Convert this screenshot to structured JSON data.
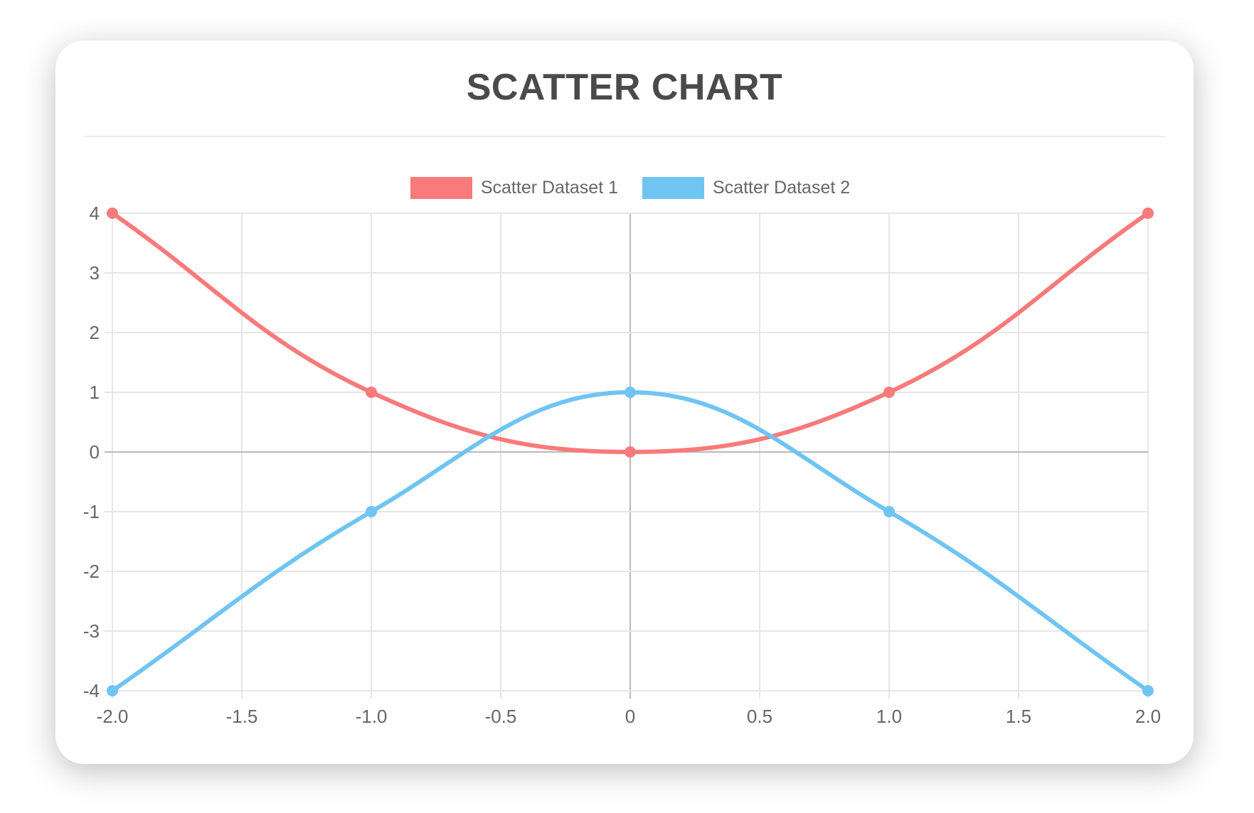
{
  "page": {
    "title": "SCATTER CHART"
  },
  "legend": {
    "items": [
      {
        "label": "Scatter Dataset 1",
        "color": "#f87a7a"
      },
      {
        "label": "Scatter Dataset 2",
        "color": "#70c4f2"
      }
    ]
  },
  "chart_data": {
    "type": "scatter",
    "title": "SCATTER CHART",
    "xlabel": "",
    "ylabel": "",
    "xlim": [
      -2,
      2
    ],
    "ylim": [
      -4,
      4
    ],
    "grid": true,
    "legend_position": "top",
    "x_ticks": [
      {
        "value": -2,
        "label": "-2.0"
      },
      {
        "value": -1.5,
        "label": "-1.5"
      },
      {
        "value": -1,
        "label": "-1.0"
      },
      {
        "value": -0.5,
        "label": "-0.5"
      },
      {
        "value": 0,
        "label": "0"
      },
      {
        "value": 0.5,
        "label": "0.5"
      },
      {
        "value": 1,
        "label": "1.0"
      },
      {
        "value": 1.5,
        "label": "1.5"
      },
      {
        "value": 2,
        "label": "2.0"
      }
    ],
    "y_ticks": [
      {
        "value": 4,
        "label": "4"
      },
      {
        "value": 3,
        "label": "3"
      },
      {
        "value": 2,
        "label": "2"
      },
      {
        "value": 1,
        "label": "1"
      },
      {
        "value": 0,
        "label": "0"
      },
      {
        "value": -1,
        "label": "-1"
      },
      {
        "value": -2,
        "label": "-2"
      },
      {
        "value": -3,
        "label": "-3"
      },
      {
        "value": -4,
        "label": "-4"
      }
    ],
    "series": [
      {
        "name": "Scatter Dataset 1",
        "color": "#f87a7a",
        "points": [
          {
            "x": -2,
            "y": 4
          },
          {
            "x": -1,
            "y": 1
          },
          {
            "x": 0,
            "y": 0
          },
          {
            "x": 1,
            "y": 1
          },
          {
            "x": 2,
            "y": 4
          }
        ]
      },
      {
        "name": "Scatter Dataset 2",
        "color": "#70c4f2",
        "points": [
          {
            "x": -2,
            "y": -4
          },
          {
            "x": -1,
            "y": -1
          },
          {
            "x": 0,
            "y": 1
          },
          {
            "x": 1,
            "y": -1
          },
          {
            "x": 2,
            "y": -4
          }
        ]
      }
    ],
    "styles": {
      "grid_color": "#e6e6e6",
      "zero_line_color": "#b9b9b9",
      "tick_text_color": "#666666",
      "title_color": "#4a4a4a",
      "line_width": 6,
      "point_radius": 8,
      "tension": 0.4
    }
  }
}
